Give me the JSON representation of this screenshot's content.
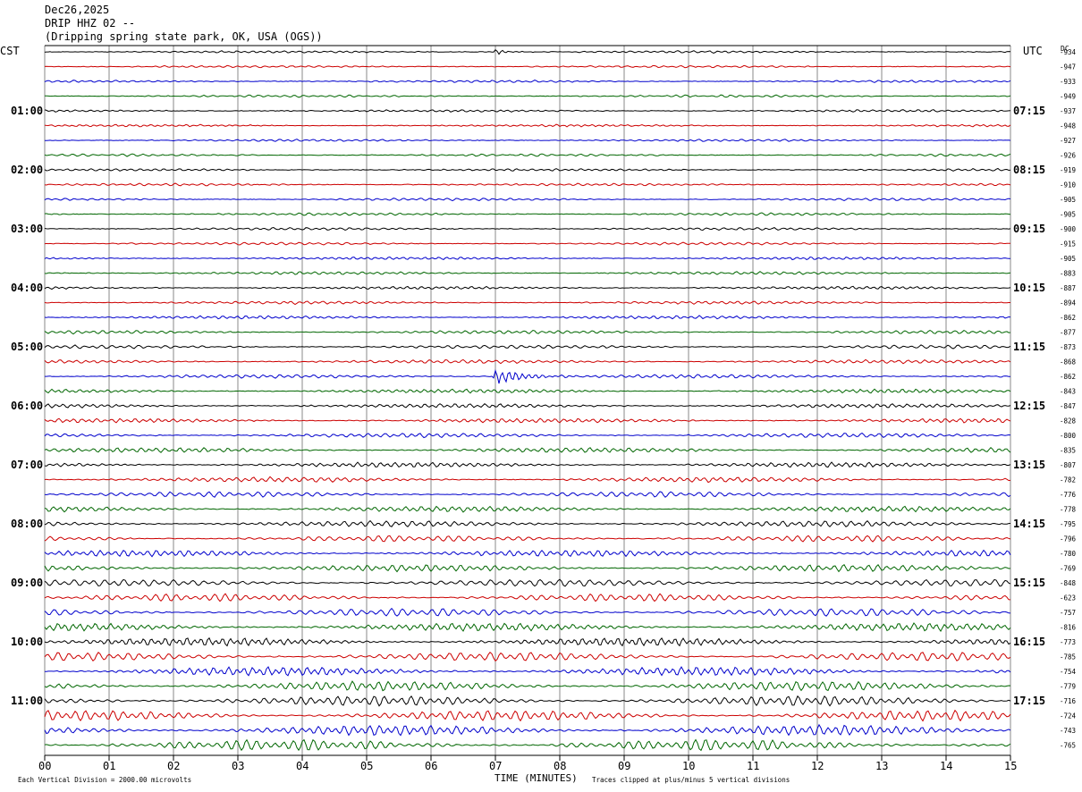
{
  "header": {
    "date": "Dec26,2025",
    "station": "DRIP HHZ 02 --",
    "location": "(Dripping spring state park, OK, USA (OGS))"
  },
  "left_tz": "CST",
  "right_tz": "UTC",
  "dc_label": "DC",
  "footer": {
    "xlabel": "TIME (MINUTES)",
    "scale_note": "Each Vertical Division = 2000.00 microvolts",
    "clip_note": "Traces clipped at plus/minus 5 vertical divisions"
  },
  "chart_data": {
    "type": "line",
    "title": "DRIP HHZ 02 --",
    "xlabel": "TIME (MINUTES)",
    "xlim": [
      0,
      15
    ],
    "x_ticks": [
      "00",
      "01",
      "02",
      "03",
      "04",
      "05",
      "06",
      "07",
      "08",
      "09",
      "10",
      "11",
      "12",
      "13",
      "14",
      "15"
    ],
    "trace_colors": [
      "#000000",
      "#cc0000",
      "#0000cc",
      "#006600"
    ],
    "left_hour_labels": [
      "01:00",
      "02:00",
      "03:00",
      "04:00",
      "05:00",
      "06:00",
      "07:00",
      "08:00",
      "09:00",
      "10:00",
      "11:00"
    ],
    "right_hour_labels": [
      "07:15",
      "08:15",
      "09:15",
      "10:15",
      "11:15",
      "12:15",
      "13:15",
      "14:15",
      "15:15",
      "16:15",
      "17:15"
    ],
    "dc_offsets": [
      "-934",
      "-947",
      "-933",
      "-949",
      "-937",
      "-948",
      "-927",
      "-926",
      "-919",
      "-910",
      "-905",
      "-905",
      "-900",
      "-915",
      "-905",
      "-883",
      "-887",
      "-894",
      "-862",
      "-877",
      "-873",
      "-868",
      "-862",
      "-843",
      "-847",
      "-828",
      "-800",
      "-835",
      "-807",
      "-782",
      "-776",
      "-778",
      "-795",
      "-796",
      "-780",
      "-769",
      "-848",
      "-623",
      "-757",
      "-816",
      "-773",
      "-785",
      "-754",
      "-779",
      "-716",
      "-724",
      "-743",
      "-765"
    ],
    "events": [
      {
        "row": 0,
        "start_min": 7.0,
        "end_min": 7.6,
        "amplitude": "small"
      },
      {
        "row": 22,
        "start_min": 6.95,
        "end_min": 8.4,
        "amplitude": "large"
      }
    ]
  }
}
